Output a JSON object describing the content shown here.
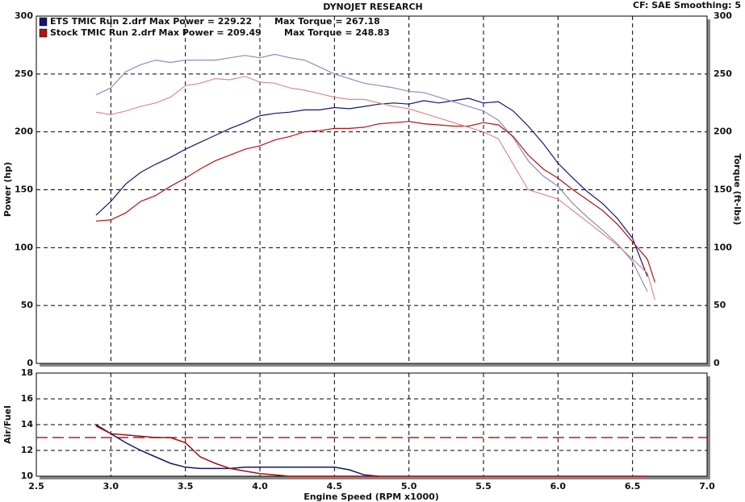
{
  "chart_data": [
    {
      "type": "line",
      "title": "DYNOJET RESEARCH",
      "annotation": "CF: SAE  Smoothing: 5",
      "ylabel": "Power (hp)",
      "y2label": "Torque (ft-lbs)",
      "x": [
        2.9,
        3.0,
        3.1,
        3.2,
        3.3,
        3.4,
        3.5,
        3.6,
        3.7,
        3.8,
        3.9,
        4.0,
        4.1,
        4.2,
        4.3,
        4.4,
        4.5,
        4.6,
        4.7,
        4.8,
        4.9,
        5.0,
        5.1,
        5.2,
        5.3,
        5.4,
        5.5,
        5.6,
        5.7,
        5.8,
        5.9,
        6.0,
        6.1,
        6.2,
        6.3,
        6.4,
        6.5,
        6.6,
        6.65
      ],
      "series": [
        {
          "name": "ETS TMIC Run 2.drf Max Power = 229.22",
          "color": "#15156e",
          "values": [
            128,
            140,
            155,
            165,
            172,
            178,
            185,
            191,
            197,
            203,
            208,
            214,
            216,
            217,
            219,
            219,
            221,
            220,
            222,
            224,
            225,
            224,
            227,
            225,
            227,
            229,
            225,
            226,
            218,
            205,
            190,
            173,
            160,
            148,
            138,
            125,
            108,
            75,
            null
          ]
        },
        {
          "name": "Max Torque = 267.18",
          "color": "#8c8cbc",
          "axis": "y2",
          "values": [
            232,
            238,
            252,
            258,
            262,
            260,
            262,
            262,
            262,
            264,
            266,
            264,
            267,
            264,
            262,
            256,
            250,
            246,
            242,
            240,
            238,
            235,
            234,
            230,
            226,
            222,
            218,
            210,
            195,
            175,
            162,
            153,
            138,
            126,
            115,
            103,
            88,
            62,
            null
          ]
        },
        {
          "name": "Stock TMIC Run 2.drf Max Power = 209.49",
          "color": "#b01414",
          "values": [
            123,
            124,
            130,
            140,
            145,
            153,
            160,
            168,
            175,
            180,
            185,
            188,
            193,
            196,
            200,
            201,
            203,
            203,
            204,
            207,
            208,
            209,
            207,
            206,
            205,
            205,
            208,
            206,
            196,
            180,
            168,
            160,
            150,
            141,
            132,
            120,
            105,
            90,
            70
          ]
        },
        {
          "name": "Max Torque = 248.83",
          "color": "#dc8c8c",
          "axis": "y2",
          "values": [
            217,
            215,
            218,
            222,
            225,
            230,
            240,
            242,
            246,
            245,
            248,
            243,
            242,
            238,
            236,
            233,
            230,
            228,
            228,
            225,
            222,
            220,
            216,
            212,
            208,
            204,
            200,
            194,
            172,
            150,
            146,
            142,
            132,
            122,
            112,
            102,
            90,
            78,
            55
          ]
        }
      ],
      "xlim": [
        2.5,
        7.0
      ],
      "xticks": [
        2.5,
        3,
        3.5,
        4,
        4.5,
        5,
        5.5,
        6,
        6.5,
        7
      ],
      "ylim": [
        0,
        300
      ],
      "yticks": [
        0,
        50,
        100,
        150,
        200,
        250,
        300
      ],
      "y2lim": [
        0,
        300
      ],
      "y2ticks": [
        0,
        50,
        100,
        150,
        200,
        250,
        300
      ],
      "grid": true
    },
    {
      "type": "line",
      "ylabel": "Air/Fuel",
      "xlabel": "Engine Speed (RPM x1000)",
      "x": [
        2.9,
        3.0,
        3.1,
        3.2,
        3.3,
        3.4,
        3.5,
        3.6,
        3.7,
        3.8,
        3.9,
        4.0,
        4.1,
        4.2,
        4.3,
        4.4,
        4.5,
        4.6,
        4.7,
        4.8,
        4.9,
        5.0,
        5.1,
        5.2,
        5.3,
        5.4,
        5.5,
        5.6,
        5.7,
        5.8,
        5.9,
        6.0,
        6.1,
        6.2,
        6.3,
        6.4,
        6.5,
        6.6,
        6.65
      ],
      "series": [
        {
          "color": "#15156e",
          "values": [
            14,
            13.3,
            12.6,
            12.0,
            11.5,
            11.0,
            10.7,
            10.6,
            10.6,
            10.6,
            10.7,
            10.7,
            10.7,
            10.7,
            10.7,
            10.7,
            10.7,
            10.5,
            10.1,
            10.0,
            null,
            null,
            null,
            null,
            null,
            null,
            null,
            null,
            null,
            null,
            null,
            null,
            null,
            null,
            null,
            null,
            null,
            null,
            null
          ]
        },
        {
          "color": "#a01010",
          "values": [
            13.9,
            13.3,
            13.2,
            13.1,
            13.0,
            13.0,
            12.6,
            11.5,
            11.0,
            10.6,
            10.4,
            10.2,
            10.1,
            10.0,
            10.0,
            10.0,
            10.0,
            10.0,
            10.0,
            10.0,
            10.0,
            10.0,
            10.0,
            10.0,
            10.0,
            10.0,
            10.0,
            10.0,
            10.0,
            10.0,
            10.0,
            10.0,
            10.0,
            10.0,
            10.0,
            10.0,
            10.0,
            10.0,
            null
          ]
        }
      ],
      "reference_line": {
        "value": 13,
        "color": "#b02020"
      },
      "xlim": [
        2.5,
        7.0
      ],
      "xticks": [
        2.5,
        {
          "value": 3,
          "label": "3.0"
        },
        3.5,
        {
          "value": 4,
          "label": "4.0"
        },
        4.5,
        {
          "value": 5,
          "label": "5.0"
        },
        5.5,
        {
          "value": 6,
          "label": "6.0"
        },
        6.5,
        {
          "value": 7,
          "label": "7.0"
        }
      ],
      "ylim": [
        10,
        18
      ],
      "yticks": [
        10,
        12,
        14,
        16,
        18
      ],
      "grid": true
    }
  ]
}
